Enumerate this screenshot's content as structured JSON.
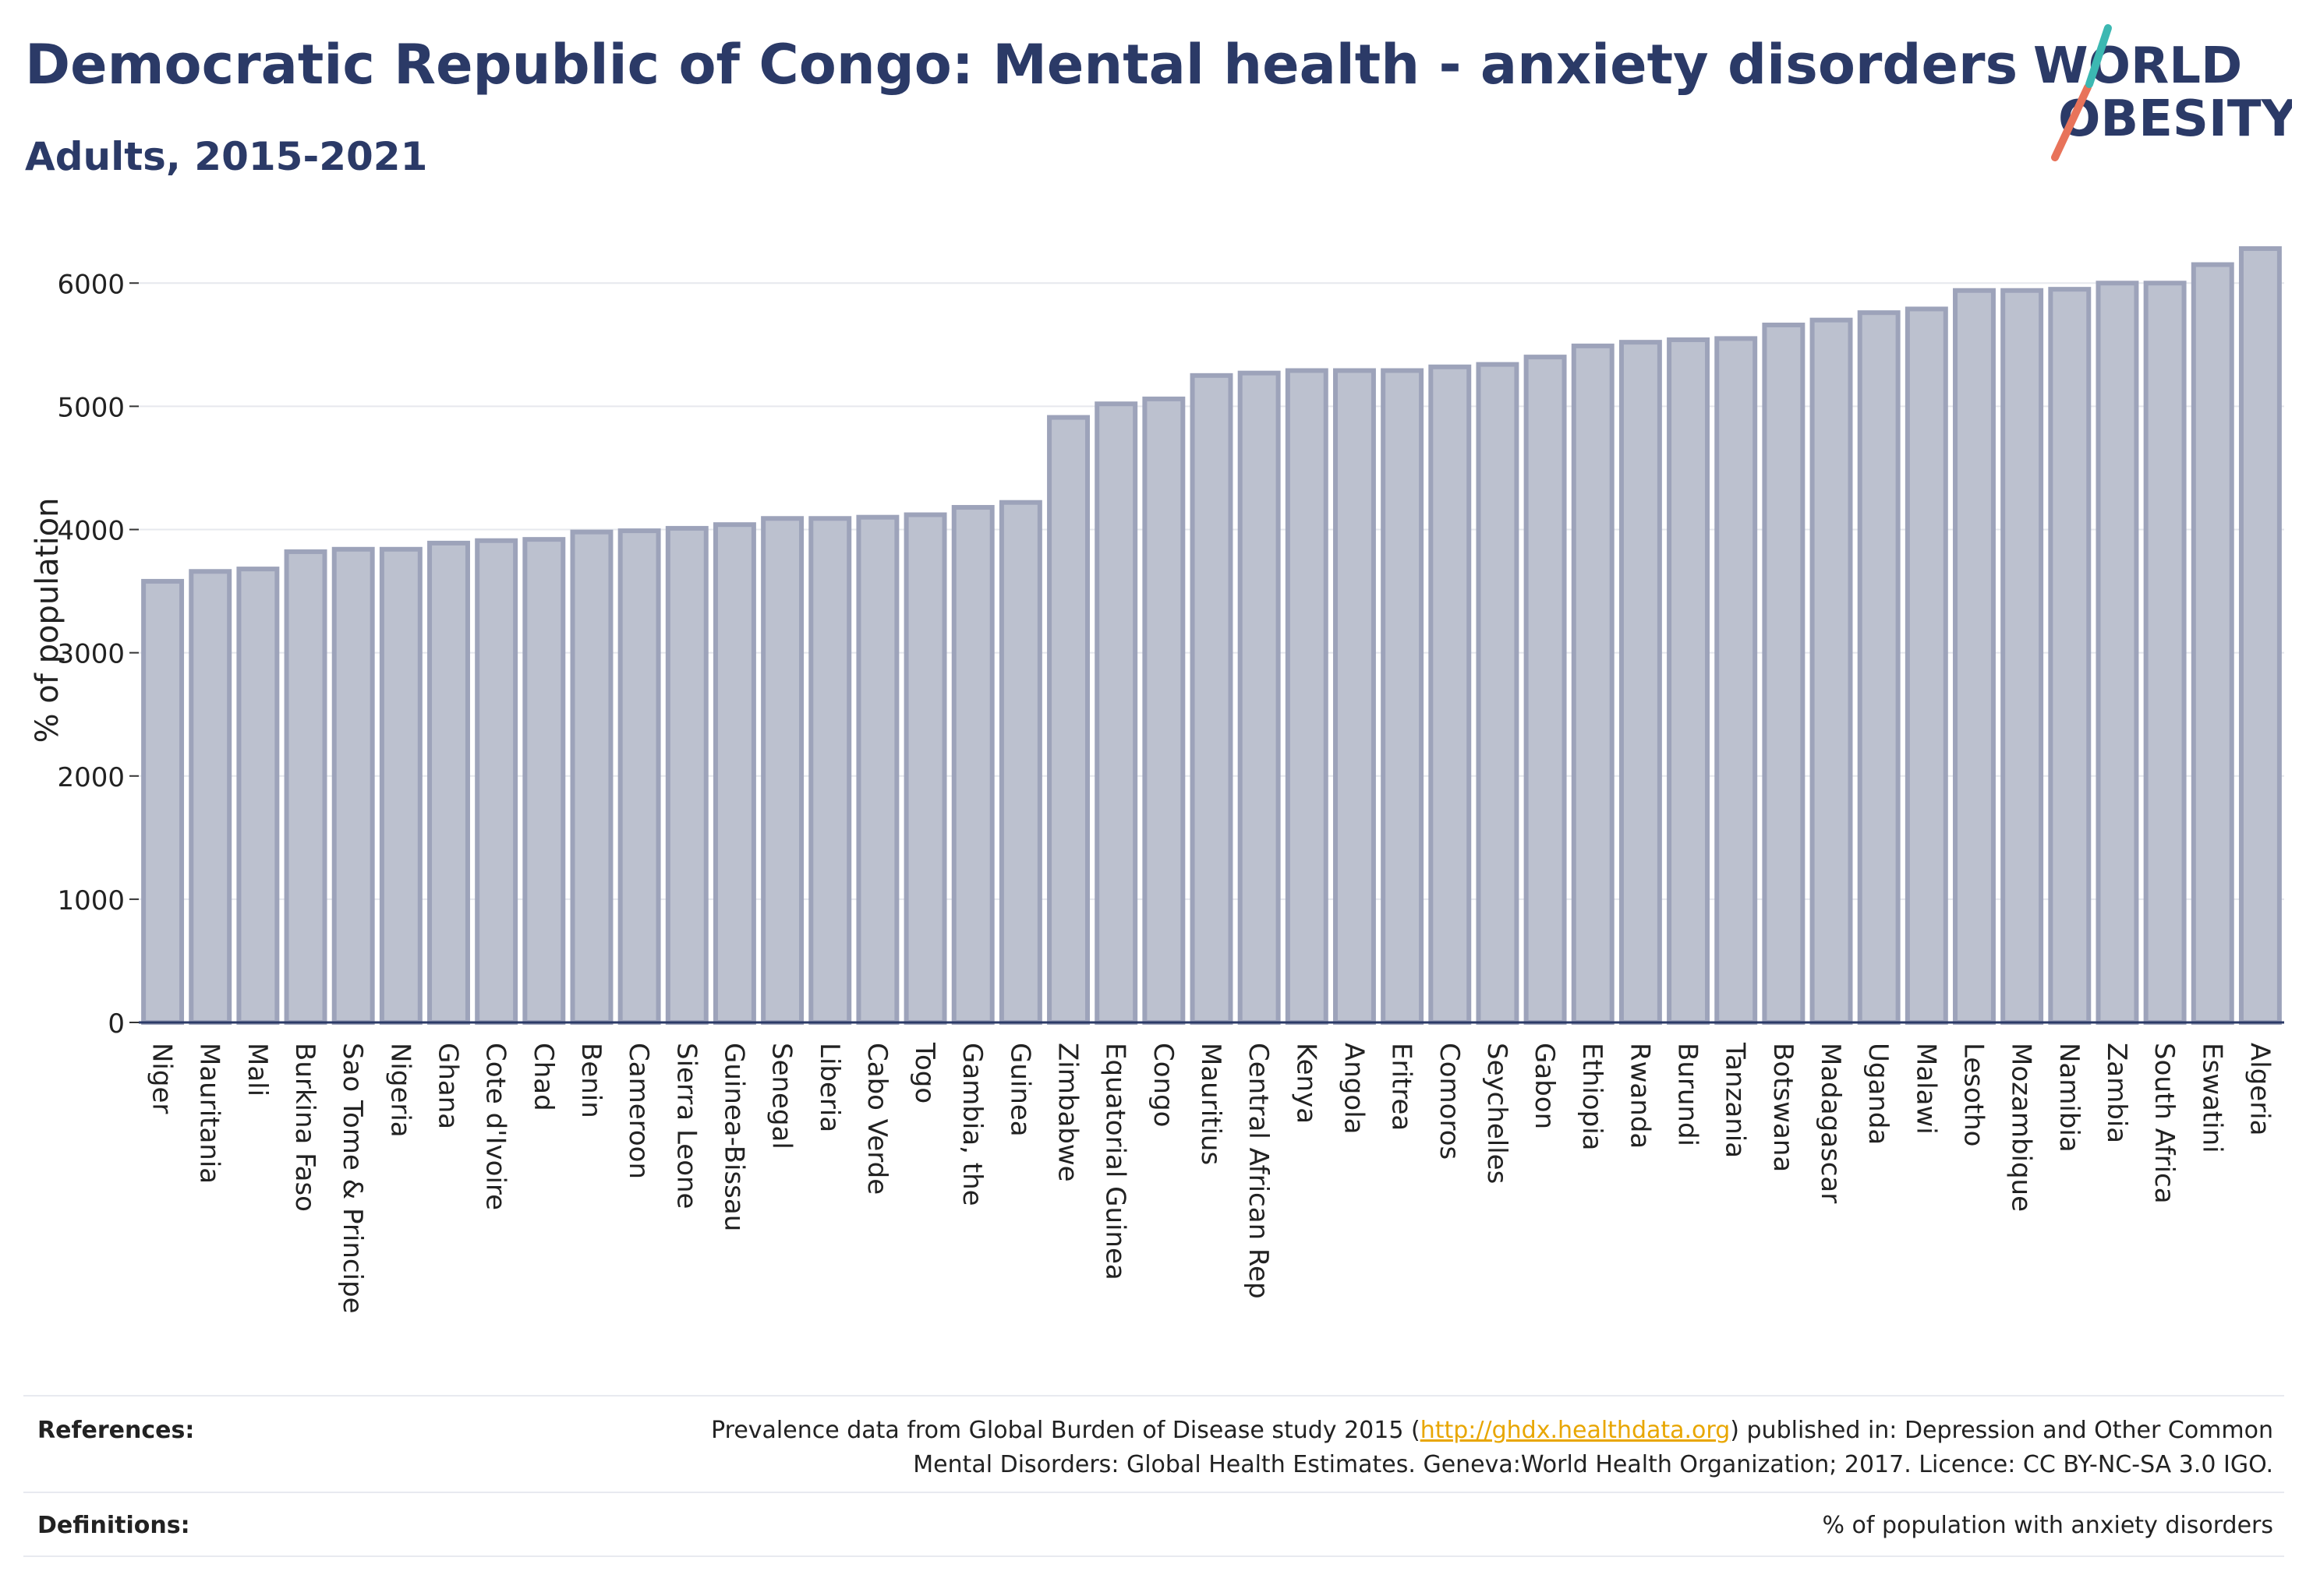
{
  "header": {
    "title": "Democratic Republic of Congo: Mental health - anxiety disorders",
    "subtitle": "Adults, 2015-2021"
  },
  "logo": {
    "line1": "WORLD",
    "line2": "OBESITY",
    "text_color": "#2b3a67",
    "accent_colors": [
      "#e8735a",
      "#3cb8b2"
    ]
  },
  "chart_data": {
    "type": "bar",
    "ylabel": "% of population",
    "ylim": [
      0,
      6400
    ],
    "yticks": [
      0,
      1000,
      2000,
      3000,
      4000,
      5000,
      6000
    ],
    "grid": true,
    "bar_color": "#bcc1cf",
    "bar_outline": "#9da3ba",
    "categories": [
      "Niger",
      "Mauritania",
      "Mali",
      "Burkina Faso",
      "Sao Tome & Principe",
      "Nigeria",
      "Ghana",
      "Cote d'Ivoire",
      "Chad",
      "Benin",
      "Cameroon",
      "Sierra Leone",
      "Guinea-Bissau",
      "Senegal",
      "Liberia",
      "Cabo Verde",
      "Togo",
      "Gambia, the",
      "Guinea",
      "Zimbabwe",
      "Equatorial Guinea",
      "Congo",
      "Mauritius",
      "Central African Rep",
      "Kenya",
      "Angola",
      "Eritrea",
      "Comoros",
      "Seychelles",
      "Gabon",
      "Ethiopia",
      "Rwanda",
      "Burundi",
      "Tanzania",
      "Botswana",
      "Madagascar",
      "Uganda",
      "Malawi",
      "Lesotho",
      "Mozambique",
      "Namibia",
      "Zambia",
      "South Africa",
      "Eswatini",
      "Algeria"
    ],
    "values": [
      3580,
      3660,
      3680,
      3820,
      3840,
      3840,
      3890,
      3910,
      3920,
      3980,
      3990,
      4010,
      4040,
      4090,
      4090,
      4100,
      4120,
      4180,
      4220,
      4910,
      5020,
      5060,
      5250,
      5270,
      5290,
      5290,
      5290,
      5320,
      5340,
      5400,
      5490,
      5520,
      5540,
      5550,
      5660,
      5700,
      5760,
      5790,
      5940,
      5940,
      5950,
      6000,
      6000,
      6150,
      6280
    ]
  },
  "footer": {
    "references_label": "References:",
    "references_prefix": "Prevalence data from Global Burden of Disease study 2015 (",
    "references_link": "http://ghdx.healthdata.org",
    "references_suffix": ") published in: Depression and Other Common",
    "references_line2": "Mental Disorders: Global Health Estimates. Geneva:World Health Organization; 2017. Licence: CC BY-NC-SA 3.0 IGO.",
    "definitions_label": "Definitions:",
    "definitions_text": "% of population with anxiety disorders"
  }
}
